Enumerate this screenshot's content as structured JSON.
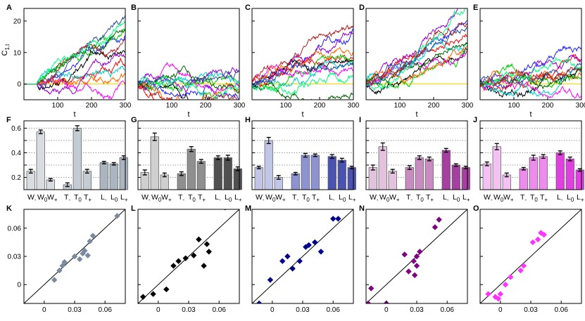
{
  "chart_data": [
    {
      "type": "line",
      "row": "walks",
      "panel_labels": [
        "A",
        "B",
        "C",
        "D",
        "E"
      ],
      "xlabel": "t",
      "ylabel": "C",
      "ylabel_sub": "1,t",
      "xlim": [
        0,
        300
      ],
      "ylim": [
        -5,
        24
      ],
      "xticks": [
        100,
        200,
        300
      ],
      "yticks": [
        0,
        10,
        20
      ],
      "series_colors": [
        "#1f1fff",
        "#ff0000",
        "#00cc00",
        "#000000",
        "#ff00ff",
        "#00cccc",
        "#9400d3",
        "#ff6600",
        "#006400",
        "#2f4f9f",
        "#b22222",
        "#00ff7f",
        "#ffd700"
      ]
    },
    {
      "type": "bar",
      "row": "bars",
      "panel_labels": [
        "F",
        "G",
        "H",
        "I",
        "J"
      ],
      "ylim": [
        0.1,
        0.66
      ],
      "yticks": [
        0.2,
        0.3,
        0.4,
        0.5,
        0.6
      ],
      "yticklabels": [
        "0.2",
        "0.4",
        "0.6"
      ],
      "categories": [
        {
          "base": "W",
          "sub": "-"
        },
        {
          "base": "W",
          "sub": "0"
        },
        {
          "base": "W",
          "sub": "+"
        },
        {
          "base": "T",
          "sub": "-"
        },
        {
          "base": "T",
          "sub": "0"
        },
        {
          "base": "T",
          "sub": "+"
        },
        {
          "base": "L",
          "sub": "-"
        },
        {
          "base": "L",
          "sub": "0"
        },
        {
          "base": "L",
          "sub": "+"
        }
      ],
      "panel_colors": [
        [
          "#d9dde2",
          "#c4ccd3",
          "#aab5bf"
        ],
        [
          "#cfcfcf",
          "#8f8f8f",
          "#505050"
        ],
        [
          "#c2c6e6",
          "#8d93d1",
          "#4a53b0"
        ],
        [
          "#e3c2de",
          "#c88cc0",
          "#a540a0"
        ],
        [
          "#f3c2f3",
          "#ee8cee",
          "#e040e0"
        ]
      ],
      "series": [
        {
          "values": [
            0.25,
            0.57,
            0.18,
            0.14,
            0.6,
            0.25,
            0.32,
            0.31,
            0.36
          ],
          "errors": [
            0.015,
            0.015,
            0.01,
            0.015,
            0.02,
            0.015,
            0.01,
            0.01,
            0.015
          ]
        },
        {
          "values": [
            0.24,
            0.53,
            0.22,
            0.23,
            0.43,
            0.33,
            0.36,
            0.36,
            0.27
          ],
          "errors": [
            0.02,
            0.03,
            0.015,
            0.015,
            0.02,
            0.015,
            0.015,
            0.02,
            0.015
          ]
        },
        {
          "values": [
            0.28,
            0.5,
            0.2,
            0.23,
            0.38,
            0.38,
            0.37,
            0.34,
            0.28
          ],
          "errors": [
            0.01,
            0.025,
            0.015,
            0.01,
            0.015,
            0.01,
            0.015,
            0.015,
            0.01
          ]
        },
        {
          "values": [
            0.28,
            0.45,
            0.25,
            0.28,
            0.36,
            0.35,
            0.42,
            0.3,
            0.28
          ],
          "errors": [
            0.02,
            0.03,
            0.015,
            0.015,
            0.015,
            0.015,
            0.015,
            0.01,
            0.01
          ]
        },
        {
          "values": [
            0.31,
            0.45,
            0.22,
            0.27,
            0.36,
            0.37,
            0.4,
            0.35,
            0.26
          ],
          "errors": [
            0.015,
            0.025,
            0.015,
            0.01,
            0.02,
            0.015,
            0.015,
            0.015,
            0.01
          ]
        }
      ]
    },
    {
      "type": "scatter",
      "row": "scatter",
      "panel_labels": [
        "K",
        "L",
        "M",
        "N",
        "O"
      ],
      "xlim": [
        -0.02,
        0.08
      ],
      "ylim": [
        -0.02,
        0.08
      ],
      "ticks": [
        0,
        0.03,
        0.06
      ],
      "ticklabels": [
        "0",
        "0.03",
        "0.06"
      ],
      "diagonal": true,
      "panels": [
        {
          "color": "#7a8a9e",
          "x": [
            0.01,
            0.015,
            0.018,
            0.02,
            0.03,
            0.035,
            0.038,
            0.04,
            0.043,
            0.045,
            0.048,
            0.072
          ],
          "y": [
            0.005,
            0.015,
            0.02,
            0.024,
            0.03,
            0.027,
            0.033,
            0.036,
            0.031,
            0.046,
            0.052,
            0.073
          ]
        },
        {
          "color": "#000000",
          "x": [
            -0.015,
            -0.005,
            0.008,
            0.015,
            0.02,
            0.027,
            0.035,
            0.04,
            0.045,
            0.048,
            0.05,
            0.066
          ],
          "y": [
            -0.013,
            -0.01,
            -0.005,
            0.02,
            0.025,
            0.028,
            0.031,
            0.048,
            0.02,
            0.043,
            0.035,
            0.082
          ]
        },
        {
          "color": "#00008b",
          "x": [
            -0.013,
            -0.002,
            0.01,
            0.015,
            0.02,
            0.027,
            0.033,
            0.036,
            0.042,
            0.048,
            0.06,
            0.065
          ],
          "y": [
            -0.02,
            0.005,
            0.025,
            0.03,
            0.017,
            0.025,
            0.04,
            0.042,
            0.045,
            0.035,
            0.07,
            0.07
          ]
        },
        {
          "color": "#800080",
          "x": [
            -0.018,
            -0.015,
            0.0,
            0.018,
            0.022,
            0.027,
            0.028,
            0.03,
            0.03,
            0.033,
            0.048,
            0.052
          ],
          "y": [
            -0.02,
            -0.004,
            -0.02,
            0.032,
            0.014,
            0.025,
            0.01,
            0.03,
            0.02,
            0.035,
            0.061,
            0.069
          ]
        },
        {
          "color": "#ff33ff",
          "x": [
            -0.012,
            -0.005,
            -0.002,
            0.0,
            0.005,
            0.01,
            0.02,
            0.023,
            0.032,
            0.037,
            0.04,
            0.043
          ],
          "y": [
            -0.01,
            -0.013,
            -0.015,
            -0.01,
            0.0,
            0.008,
            0.015,
            0.02,
            0.045,
            0.048,
            0.055,
            0.053
          ]
        }
      ]
    }
  ]
}
